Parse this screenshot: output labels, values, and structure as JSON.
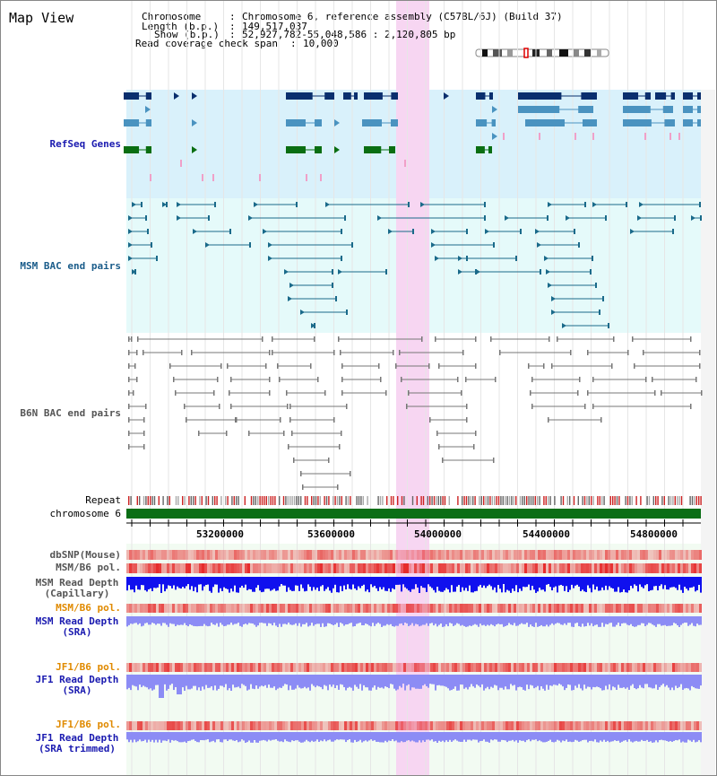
{
  "title": "Map View",
  "header": {
    "chromosome_label": "Chromosome",
    "chromosome_value": "Chromosome 6, reference assembly (C57BL/6J) (Build 37)",
    "length_label": "Length (b.p.)",
    "length_value": "149,517,037",
    "show_label": "Show (b.p.)",
    "show_value": "52,927,782-55,048,586 : 2,120,805 bp",
    "coverage_label": "Read coverage check span",
    "coverage_value": "10,000"
  },
  "tracks": {
    "refseq": "RefSeq Genes",
    "msm_bac": "MSM BAC end pairs",
    "b6n_bac": "B6N BAC end pairs",
    "repeat": "Repeat",
    "chromosome": "chromosome 6",
    "dbsnp": "dbSNP(Mouse)",
    "msm_b6_pol": "MSM/B6 pol.",
    "msm_depth_cap_1": "MSM Read Depth",
    "msm_depth_cap_2": "(Capillary)",
    "msm_b6_pol_2": "MSM/B6 pol.",
    "msm_depth_sra_1": "MSM Read Depth",
    "msm_depth_sra_2": "(SRA)",
    "jf1_b6_pol": "JF1/B6 pol.",
    "jf1_depth_sra_1": "JF1 Read Depth",
    "jf1_depth_sra_2": "(SRA)",
    "jf1_b6_pol_2": "JF1/B6 pol.",
    "jf1_depth_trim_1": "JF1 Read Depth",
    "jf1_depth_trim_2": "(SRA trimmed)"
  },
  "axis_ticks": [
    "53200000",
    "53600000",
    "54000000",
    "54400000",
    "54800000"
  ],
  "colors": {
    "refseq_bg": "#d9f1fb",
    "msm_bg": "#e5fafa",
    "highlight": "#f7d6f2",
    "gene_dark": "#0a2f6e",
    "gene_mid": "#4a93c0",
    "gene_green": "#0a6e12",
    "msm_line": "#1a6a8a",
    "b6n_line": "#777777",
    "depth_blue": "#1010ee",
    "depth_light": "#8c8cf5"
  }
}
